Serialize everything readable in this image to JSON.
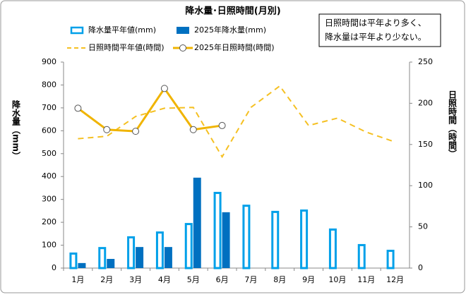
{
  "chart_data": {
    "type": "bar-line",
    "title": "降水量･日照時間(月別)",
    "annotation": [
      "日照時間は平年より多く、",
      "降水量は平年より少ない。"
    ],
    "ylabel": "降水量（mm）",
    "y2label": "日照時間（時間）",
    "categories": [
      "1月",
      "2月",
      "3月",
      "4月",
      "5月",
      "6月",
      "7月",
      "8月",
      "9月",
      "10月",
      "11月",
      "12月"
    ],
    "ylim": [
      0,
      900
    ],
    "yticks": [
      0,
      100,
      200,
      300,
      400,
      500,
      600,
      700,
      800,
      900
    ],
    "y2lim": [
      0,
      250
    ],
    "y2ticks": [
      0,
      50,
      100,
      150,
      200,
      250
    ],
    "grid": false,
    "series": [
      {
        "name": "降水量平年値(mm)",
        "type": "bar",
        "filled": false,
        "color": "#00a0e9",
        "values": [
          68,
          92,
          139,
          160,
          197,
          333,
          277,
          250,
          256,
          173,
          105,
          80
        ]
      },
      {
        "name": "2025年降水量(mm)",
        "type": "bar",
        "filled": true,
        "color": "#0070c0",
        "values": [
          22,
          40,
          92,
          92,
          395,
          244,
          null,
          null,
          null,
          null,
          null,
          null
        ]
      },
      {
        "name": "日照時間平年値(時間)",
        "type": "line",
        "axis": "y2",
        "dashed": true,
        "markers": false,
        "color": "#f5c022",
        "values": [
          157,
          160,
          184,
          194,
          195,
          135,
          195,
          221,
          173,
          182,
          165,
          153
        ]
      },
      {
        "name": "2025年日照時間(時間)",
        "type": "line",
        "axis": "y2",
        "dashed": false,
        "markers": true,
        "color": "#f0b400",
        "values": [
          194,
          168,
          166,
          218,
          168,
          173,
          null,
          null,
          null,
          null,
          null,
          null
        ]
      }
    ]
  }
}
